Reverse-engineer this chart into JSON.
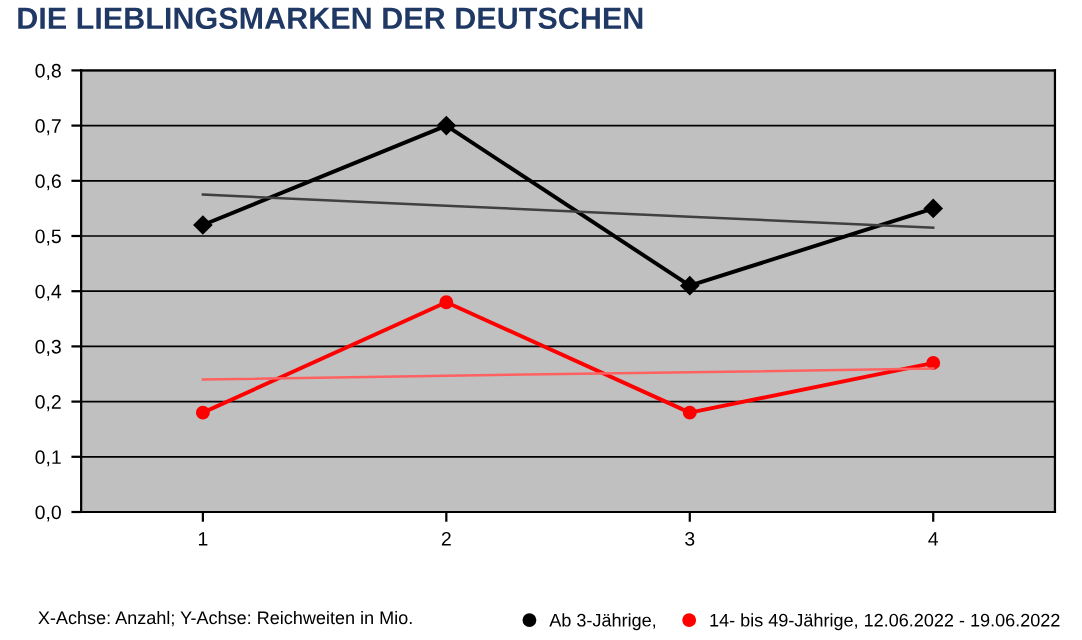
{
  "chart_data": {
    "type": "line",
    "title": "DIE LIEBLINGSMARKEN DER DEUTSCHEN",
    "categories": [
      "1",
      "2",
      "3",
      "4"
    ],
    "series": [
      {
        "name": "Ab 3-Jährige,",
        "color": "#000000",
        "values": [
          0.52,
          0.7,
          0.41,
          0.55
        ],
        "marker": "diamond"
      },
      {
        "name": "14- bis 49-Jährige, 12.06.2022 - 19.06.2022",
        "color": "#ff0000",
        "values": [
          0.18,
          0.38,
          0.18,
          0.27
        ],
        "marker": "circle"
      },
      {
        "color": "#404040",
        "values": [
          0.575,
          0.555,
          0.535,
          0.515
        ],
        "marker": "none"
      },
      {
        "color": "#ff6060",
        "values": [
          0.24,
          0.247,
          0.253,
          0.26
        ],
        "marker": "none"
      }
    ],
    "ylim": [
      0,
      0.8
    ],
    "yticks": [
      {
        "value": 0,
        "label": "0,0"
      },
      {
        "value": 0.1,
        "label": "0,1"
      },
      {
        "value": 0.2,
        "label": "0,2"
      },
      {
        "value": 0.3,
        "label": "0,3"
      },
      {
        "value": 0.4,
        "label": "0,4"
      },
      {
        "value": 0.5,
        "label": "0,5"
      },
      {
        "value": 0.6,
        "label": "0,6"
      },
      {
        "value": 0.7,
        "label": "0,7"
      },
      {
        "value": 0.8,
        "label": "0,8"
      }
    ],
    "grid": "y",
    "legend": "bottom right",
    "annotations": [
      "X-Achse: Anzahl; Y-Achse: Reichweiten in Mio."
    ]
  }
}
